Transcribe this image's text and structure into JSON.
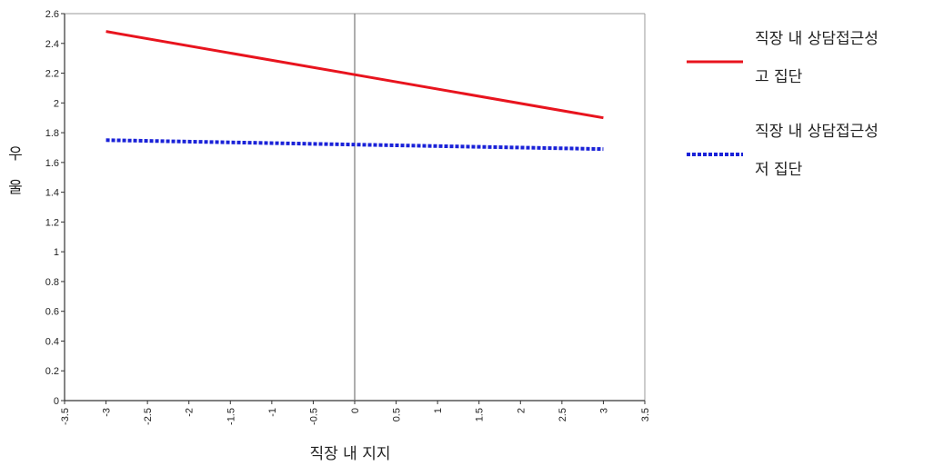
{
  "chart_data": {
    "type": "line",
    "xlabel": "직장 내 지지",
    "ylabel": "우울",
    "xlim": [
      -3.5,
      3.5
    ],
    "ylim": [
      0,
      2.6
    ],
    "x_ticks": [
      -3.5,
      -3,
      -2.5,
      -2,
      -1.5,
      -1,
      -0.5,
      0,
      0.5,
      1,
      1.5,
      2,
      2.5,
      3,
      3.5
    ],
    "x_tick_labels": [
      "-3.5",
      "-3",
      "-2.5",
      "-2",
      "-1.5",
      "-1",
      "-0.5",
      "0",
      "0.5",
      "1",
      "1.5",
      "2",
      "2.5",
      "3",
      "3.5"
    ],
    "y_ticks": [
      0,
      0.2,
      0.4,
      0.6,
      0.8,
      1,
      1.2,
      1.4,
      1.6,
      1.8,
      2,
      2.2,
      2.4,
      2.6
    ],
    "y_tick_labels": [
      "0",
      "0.2",
      "0.4",
      "0.6",
      "0.8",
      "1",
      "1.2",
      "1.4",
      "1.6",
      "1.8",
      "2",
      "2.2",
      "2.4",
      "2.6"
    ],
    "reference_line_x": 0,
    "grid": false,
    "legend_position": "right",
    "series": [
      {
        "name": "직장 내 상담접근성 고 집단",
        "legend_lines": [
          "직장 내 상담접근성",
          "고 집단"
        ],
        "color": "#e8141e",
        "style": "solid",
        "x": [
          -3,
          0,
          3
        ],
        "y": [
          2.48,
          2.19,
          1.9
        ]
      },
      {
        "name": "직장 내 상담접근성 저 집단",
        "legend_lines": [
          "직장 내 상담접근성",
          "저 집단"
        ],
        "color": "#1a22d8",
        "style": "dotted",
        "x": [
          -3,
          0,
          3
        ],
        "y": [
          1.75,
          1.72,
          1.69
        ]
      }
    ]
  }
}
